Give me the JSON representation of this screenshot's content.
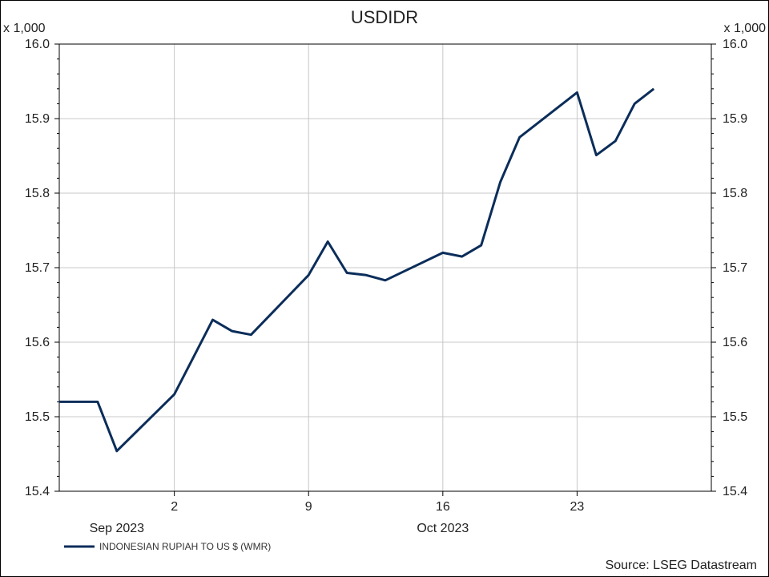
{
  "chart_data": {
    "type": "line",
    "title": "USDIDR",
    "y_multiplier_label": "x 1,000",
    "ylim": [
      15.4,
      16.0
    ],
    "y_ticks": [
      "16.0",
      "15.9",
      "15.8",
      "15.7",
      "15.6",
      "15.5",
      "15.4"
    ],
    "x_ticks": [
      {
        "date": "2023-10-02",
        "label": "2"
      },
      {
        "date": "2023-10-09",
        "label": "9"
      },
      {
        "date": "2023-10-16",
        "label": "16"
      },
      {
        "date": "2023-10-23",
        "label": "23"
      }
    ],
    "x_month_labels": [
      {
        "date": "2023-09-29",
        "label": "Sep 2023"
      },
      {
        "date": "2023-10-16",
        "label": "Oct 2023"
      }
    ],
    "xlim": [
      "2023-09-26",
      "2023-10-30"
    ],
    "grid": true,
    "series": [
      {
        "name": "INDONESIAN RUPIAH TO US $ (WMR)",
        "color": "#0b2d5a",
        "x": [
          "2023-09-26",
          "2023-09-28",
          "2023-09-29",
          "2023-10-02",
          "2023-10-03",
          "2023-10-04",
          "2023-10-05",
          "2023-10-06",
          "2023-10-09",
          "2023-10-10",
          "2023-10-11",
          "2023-10-12",
          "2023-10-13",
          "2023-10-16",
          "2023-10-17",
          "2023-10-18",
          "2023-10-19",
          "2023-10-20",
          "2023-10-23",
          "2023-10-24",
          "2023-10-25",
          "2023-10-26",
          "2023-10-27"
        ],
        "y": [
          15.52,
          15.52,
          15.454,
          15.53,
          15.58,
          15.63,
          15.615,
          15.61,
          15.69,
          15.735,
          15.693,
          15.69,
          15.683,
          15.72,
          15.715,
          15.73,
          15.815,
          15.875,
          15.935,
          15.851,
          15.87,
          15.92,
          15.94
        ]
      }
    ],
    "legend_position": "bottom-left",
    "source": "Source: LSEG Datastream"
  }
}
